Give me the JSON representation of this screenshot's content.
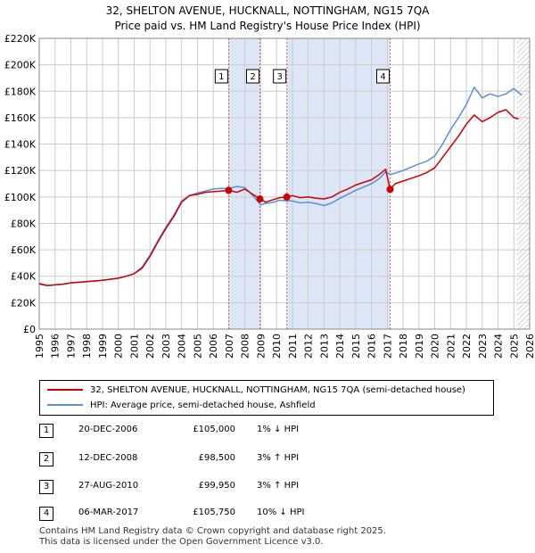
{
  "title_line1": "32, SHELTON AVENUE, HUCKNALL, NOTTINGHAM, NG15 7QA",
  "title_line2": "Price paid vs. HM Land Registry's House Price Index (HPI)",
  "colors": {
    "property": "#cc0000",
    "hpi": "#5b8fd6",
    "shade": "#dde6f7",
    "grid": "#cccccc"
  },
  "chart_data": {
    "type": "line",
    "xlim": [
      1995,
      2026
    ],
    "ylim": [
      0,
      220000
    ],
    "y_ticks": [
      0,
      20000,
      40000,
      60000,
      80000,
      100000,
      120000,
      140000,
      160000,
      180000,
      200000,
      220000
    ],
    "y_tick_labels": [
      "£0",
      "£20K",
      "£40K",
      "£60K",
      "£80K",
      "£100K",
      "£120K",
      "£140K",
      "£160K",
      "£180K",
      "£200K",
      "£220K"
    ],
    "x_ticks": [
      1995,
      1996,
      1997,
      1998,
      1999,
      2000,
      2001,
      2002,
      2003,
      2004,
      2005,
      2006,
      2007,
      2008,
      2009,
      2010,
      2011,
      2012,
      2013,
      2014,
      2015,
      2016,
      2017,
      2018,
      2019,
      2020,
      2021,
      2022,
      2023,
      2024,
      2025,
      2026
    ],
    "shaded_ranges": [
      [
        2006.97,
        2008.95
      ],
      [
        2010.65,
        2017.18
      ]
    ],
    "hatch_from": 2025.2,
    "series": [
      {
        "name": "32, SHELTON AVENUE, HUCKNALL, NOTTINGHAM, NG15 7QA (semi-detached house)",
        "color": "#cc0000",
        "x": [
          1995,
          1995.5,
          1996,
          1996.5,
          1997,
          1998,
          1999,
          2000,
          2000.5,
          2001,
          2001.5,
          2002,
          2002.5,
          2003,
          2003.5,
          2004,
          2004.5,
          2005,
          2005.5,
          2006,
          2006.5,
          2006.97,
          2007.5,
          2008,
          2008.5,
          2008.95,
          2009.3,
          2009.8,
          2010.2,
          2010.65,
          2011,
          2011.5,
          2012,
          2012.5,
          2013,
          2013.5,
          2014,
          2014.5,
          2015,
          2015.5,
          2016,
          2016.5,
          2016.9,
          2017.18,
          2017.5,
          2018,
          2018.5,
          2019,
          2019.5,
          2020,
          2020.5,
          2021,
          2021.5,
          2022,
          2022.5,
          2023,
          2023.5,
          2024,
          2024.5,
          2025,
          2025.3
        ],
        "y": [
          34500,
          33000,
          33500,
          34000,
          35000,
          36000,
          37000,
          38500,
          40000,
          42000,
          46000,
          55000,
          66000,
          76000,
          85000,
          96000,
          101000,
          102000,
          103500,
          104000,
          104500,
          105000,
          103500,
          106000,
          102000,
          98500,
          96000,
          98000,
          99500,
          99950,
          101000,
          99500,
          100000,
          99000,
          98500,
          100000,
          103500,
          106000,
          109000,
          111000,
          113000,
          117000,
          121000,
          105750,
          110000,
          112000,
          114000,
          116000,
          118500,
          122000,
          130000,
          138000,
          146000,
          155000,
          162000,
          157000,
          160000,
          164000,
          166000,
          160000,
          159000
        ]
      },
      {
        "name": "HPI: Average price, semi-detached house, Ashfield",
        "color": "#5b8fd6",
        "x": [
          1995,
          1995.5,
          1996,
          1996.5,
          1997,
          1998,
          1999,
          2000,
          2000.5,
          2001,
          2001.5,
          2002,
          2002.5,
          2003,
          2003.5,
          2004,
          2004.5,
          2005,
          2005.5,
          2006,
          2006.5,
          2007,
          2007.5,
          2008,
          2008.5,
          2009,
          2009.3,
          2009.8,
          2010.2,
          2010.65,
          2011,
          2011.5,
          2012,
          2012.5,
          2013,
          2013.5,
          2014,
          2014.5,
          2015,
          2015.5,
          2016,
          2016.5,
          2016.9,
          2017.2,
          2017.5,
          2018,
          2018.5,
          2019,
          2019.5,
          2020,
          2020.5,
          2021,
          2021.5,
          2022,
          2022.5,
          2023,
          2023.5,
          2024,
          2024.5,
          2025,
          2025.5
        ],
        "y": [
          34000,
          33000,
          33500,
          34000,
          35000,
          36000,
          37000,
          38500,
          40000,
          42000,
          47000,
          56000,
          67000,
          77000,
          86000,
          97000,
          101000,
          103000,
          104500,
          106000,
          106500,
          106500,
          108000,
          107000,
          101000,
          94000,
          95000,
          96000,
          97500,
          97000,
          97000,
          95500,
          96000,
          95000,
          93500,
          95500,
          99000,
          102000,
          105000,
          107500,
          110000,
          114000,
          119000,
          117000,
          118000,
          120000,
          122500,
          125000,
          127000,
          131000,
          140000,
          151000,
          160000,
          170000,
          183000,
          175000,
          178000,
          176000,
          178000,
          182000,
          177000
        ]
      }
    ],
    "sale_markers": [
      {
        "label": "1",
        "x": 2006.97,
        "y": 105000
      },
      {
        "label": "2",
        "x": 2008.95,
        "y": 98500
      },
      {
        "label": "3",
        "x": 2010.65,
        "y": 99950
      },
      {
        "label": "4",
        "x": 2017.18,
        "y": 105750
      }
    ]
  },
  "legend": {
    "property_label": "32, SHELTON AVENUE, HUCKNALL, NOTTINGHAM, NG15 7QA (semi-detached house)",
    "hpi_label": "HPI: Average price, semi-detached house, Ashfield"
  },
  "sales": [
    {
      "num": "1",
      "date": "20-DEC-2006",
      "price": "£105,000",
      "hpi": "1% ↓ HPI"
    },
    {
      "num": "2",
      "date": "12-DEC-2008",
      "price": "£98,500",
      "hpi": "3% ↑ HPI"
    },
    {
      "num": "3",
      "date": "27-AUG-2010",
      "price": "£99,950",
      "hpi": "3% ↑ HPI"
    },
    {
      "num": "4",
      "date": "06-MAR-2017",
      "price": "£105,750",
      "hpi": "10% ↓ HPI"
    }
  ],
  "footer_line1": "Contains HM Land Registry data © Crown copyright and database right 2025.",
  "footer_line2": "This data is licensed under the Open Government Licence v3.0."
}
